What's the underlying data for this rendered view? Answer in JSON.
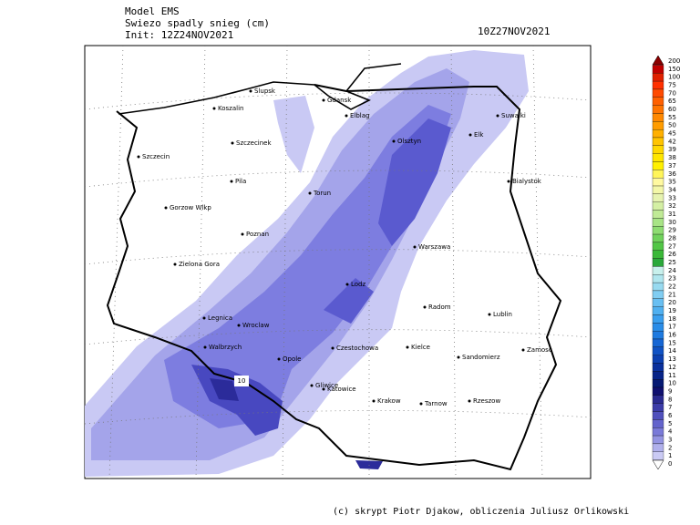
{
  "header": {
    "model": "Model EMS",
    "title": "Swiezo spadly snieg (cm)",
    "init": "Init: 12Z24NOV2021",
    "valid": "10Z27NOV2021"
  },
  "map": {
    "cities": [
      "Slupsk",
      "Koszalin",
      "Gdansk",
      "Elblag",
      "Suwalki",
      "Olsztyn",
      "Elk",
      "Szczecinek",
      "Szczecin",
      "Bialystok",
      "Pila",
      "Torun",
      "Gorzow Wlkp",
      "Warszawa",
      "Poznan",
      "Zielona Gora",
      "Lodz",
      "Radom",
      "Lublin",
      "Legnica",
      "Wroclaw",
      "Walbrzych",
      "Czestochowa",
      "Kielce",
      "Zamosc",
      "Opole",
      "Sandomierz",
      "Gliwice",
      "Katowice",
      "Krakow",
      "Tarnow",
      "Rzeszow"
    ],
    "max_label": "10"
  },
  "legend": {
    "labels": [
      "200",
      "150",
      "100",
      "75",
      "70",
      "65",
      "60",
      "55",
      "50",
      "45",
      "42",
      "39",
      "38",
      "37",
      "36",
      "35",
      "34",
      "33",
      "32",
      "31",
      "30",
      "29",
      "28",
      "27",
      "26",
      "25",
      "24",
      "23",
      "22",
      "21",
      "20",
      "19",
      "18",
      "17",
      "16",
      "15",
      "14",
      "13",
      "12",
      "11",
      "10",
      "9",
      "8",
      "7",
      "6",
      "5",
      "4",
      "3",
      "2",
      "1",
      "0"
    ]
  },
  "footer": "(c) skrypt Piotr Djakow, obliczenia Juliusz Orlikowski"
}
